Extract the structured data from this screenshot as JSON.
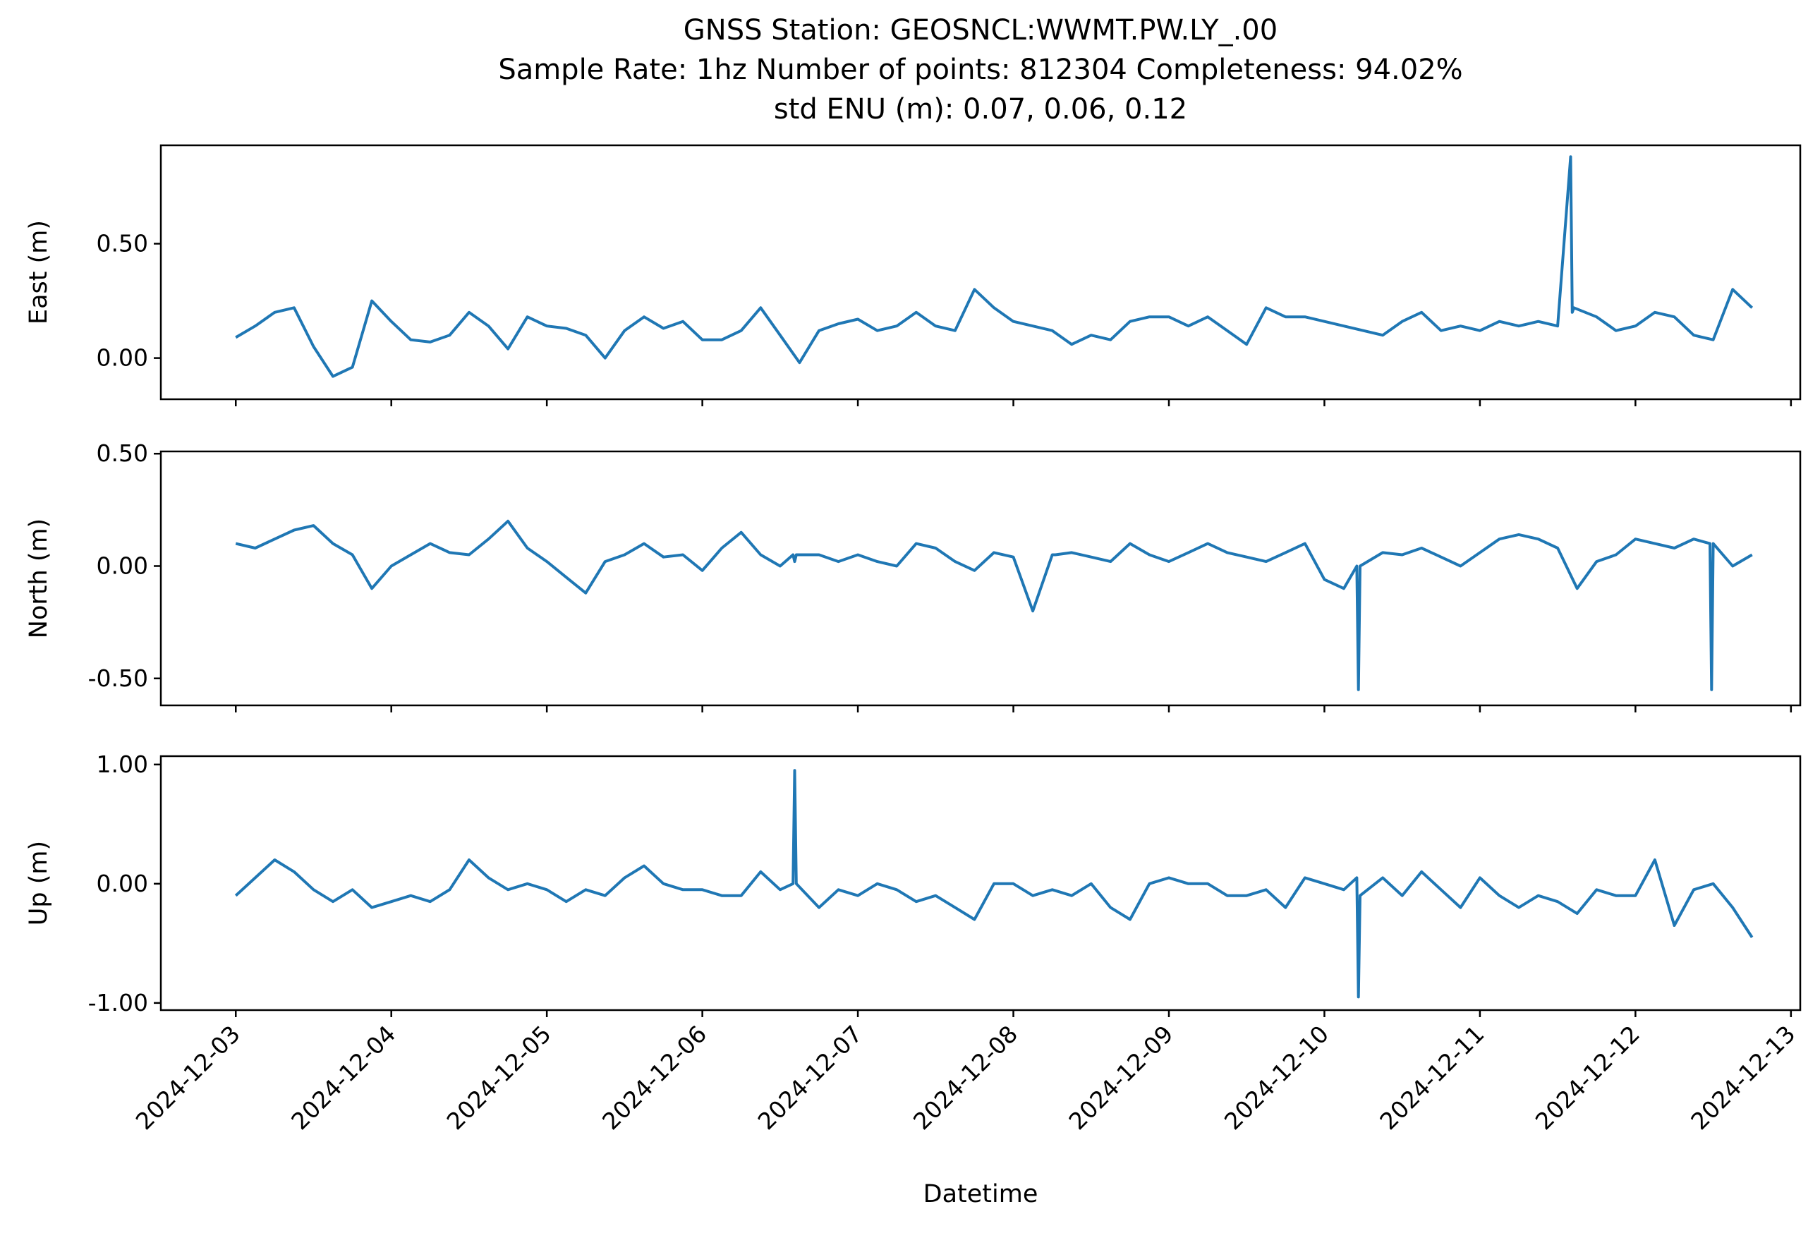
{
  "chart_data": {
    "type": "line",
    "title_lines": [
      "GNSS Station: GEOSNCL:WWMT.PW.LY_.00",
      "Sample Rate: 1hz   Number of points: 812304    Completeness:  94.02%",
      "std ENU (m):  0.07, 0.06, 0.12"
    ],
    "xlabel": "Datetime",
    "x_ticks": [
      "2024-12-03",
      "2024-12-04",
      "2024-12-05",
      "2024-12-06",
      "2024-12-07",
      "2024-12-08",
      "2024-12-09",
      "2024-12-10",
      "2024-12-11",
      "2024-12-12",
      "2024-12-13"
    ],
    "xlim": [
      "2024-12-02T12:26",
      "2024-12-13T01:26"
    ],
    "sample_rate": "1hz",
    "number_of_points": 812304,
    "completeness": "94.02%",
    "std_enu_m": [
      0.07,
      0.06,
      0.12
    ],
    "line_color": "#1f77b4",
    "grid": false,
    "panels": [
      {
        "ylabel": "East (m)",
        "ylim": [
          -0.18,
          0.93
        ],
        "y_ticks": [
          0.0,
          0.5
        ],
        "y_tick_labels": [
          "0.00",
          "0.50"
        ],
        "series": {
          "x": [
            "2024-12-03T00:00",
            "2024-12-03T03:00",
            "2024-12-03T06:00",
            "2024-12-03T09:00",
            "2024-12-03T12:00",
            "2024-12-03T15:00",
            "2024-12-03T18:00",
            "2024-12-03T21:00",
            "2024-12-04T00:00",
            "2024-12-04T03:00",
            "2024-12-04T06:00",
            "2024-12-04T09:00",
            "2024-12-04T12:00",
            "2024-12-04T15:00",
            "2024-12-04T18:00",
            "2024-12-04T21:00",
            "2024-12-05T00:00",
            "2024-12-05T03:00",
            "2024-12-05T06:00",
            "2024-12-05T09:00",
            "2024-12-05T12:00",
            "2024-12-05T15:00",
            "2024-12-05T18:00",
            "2024-12-05T21:00",
            "2024-12-06T00:00",
            "2024-12-06T03:00",
            "2024-12-06T06:00",
            "2024-12-06T09:00",
            "2024-12-06T12:00",
            "2024-12-06T15:00",
            "2024-12-06T18:00",
            "2024-12-06T21:00",
            "2024-12-07T00:00",
            "2024-12-07T03:00",
            "2024-12-07T06:00",
            "2024-12-07T09:00",
            "2024-12-07T12:00",
            "2024-12-07T15:00",
            "2024-12-07T18:00",
            "2024-12-07T21:00",
            "2024-12-08T00:00",
            "2024-12-08T03:00",
            "2024-12-08T06:00",
            "2024-12-08T09:00",
            "2024-12-08T12:00",
            "2024-12-08T15:00",
            "2024-12-08T18:00",
            "2024-12-08T21:00",
            "2024-12-09T00:00",
            "2024-12-09T03:00",
            "2024-12-09T06:00",
            "2024-12-09T09:00",
            "2024-12-09T12:00",
            "2024-12-09T15:00",
            "2024-12-09T18:00",
            "2024-12-09T21:00",
            "2024-12-10T00:00",
            "2024-12-10T03:00",
            "2024-12-10T06:00",
            "2024-12-10T09:00",
            "2024-12-10T12:00",
            "2024-12-10T15:00",
            "2024-12-10T18:00",
            "2024-12-10T21:00",
            "2024-12-11T00:00",
            "2024-12-11T03:00",
            "2024-12-11T06:00",
            "2024-12-11T09:00",
            "2024-12-11T12:00",
            "2024-12-11T14:00",
            "2024-12-11T14:15",
            "2024-12-11T14:30",
            "2024-12-11T18:00",
            "2024-12-11T21:00",
            "2024-12-12T00:00",
            "2024-12-12T03:00",
            "2024-12-12T06:00",
            "2024-12-12T09:00",
            "2024-12-12T12:00",
            "2024-12-12T15:00",
            "2024-12-12T18:00"
          ],
          "y": [
            0.09,
            0.14,
            0.2,
            0.22,
            0.05,
            -0.08,
            -0.04,
            0.25,
            0.16,
            0.08,
            0.07,
            0.1,
            0.2,
            0.14,
            0.04,
            0.18,
            0.14,
            0.13,
            0.1,
            0.0,
            0.12,
            0.18,
            0.13,
            0.16,
            0.08,
            0.08,
            0.12,
            0.22,
            0.1,
            -0.02,
            0.12,
            0.15,
            0.17,
            0.12,
            0.14,
            0.2,
            0.14,
            0.12,
            0.3,
            0.22,
            0.16,
            0.14,
            0.12,
            0.06,
            0.1,
            0.08,
            0.16,
            0.18,
            0.18,
            0.14,
            0.18,
            0.12,
            0.06,
            0.22,
            0.18,
            0.18,
            0.16,
            0.14,
            0.12,
            0.1,
            0.16,
            0.2,
            0.12,
            0.14,
            0.12,
            0.16,
            0.14,
            0.16,
            0.14,
            0.88,
            0.2,
            0.22,
            0.18,
            0.12,
            0.14,
            0.2,
            0.18,
            0.1,
            0.08,
            0.3,
            0.22
          ]
        }
      },
      {
        "ylabel": "North (m)",
        "ylim": [
          -0.62,
          0.51
        ],
        "y_ticks": [
          0.5,
          0.0,
          -0.5
        ],
        "y_tick_labels": [
          "0.50",
          "0.00",
          "-0.50"
        ],
        "series": {
          "x": [
            "2024-12-03T00:00",
            "2024-12-03T03:00",
            "2024-12-03T06:00",
            "2024-12-03T09:00",
            "2024-12-03T12:00",
            "2024-12-03T15:00",
            "2024-12-03T18:00",
            "2024-12-03T21:00",
            "2024-12-04T00:00",
            "2024-12-04T03:00",
            "2024-12-04T06:00",
            "2024-12-04T09:00",
            "2024-12-04T12:00",
            "2024-12-04T15:00",
            "2024-12-04T18:00",
            "2024-12-04T21:00",
            "2024-12-05T00:00",
            "2024-12-05T03:00",
            "2024-12-05T06:00",
            "2024-12-05T09:00",
            "2024-12-05T12:00",
            "2024-12-05T15:00",
            "2024-12-05T18:00",
            "2024-12-05T21:00",
            "2024-12-06T00:00",
            "2024-12-06T03:00",
            "2024-12-06T06:00",
            "2024-12-06T09:00",
            "2024-12-06T12:00",
            "2024-12-06T14:00",
            "2024-12-06T14:15",
            "2024-12-06T14:30",
            "2024-12-06T18:00",
            "2024-12-06T21:00",
            "2024-12-07T00:00",
            "2024-12-07T03:00",
            "2024-12-07T06:00",
            "2024-12-07T09:00",
            "2024-12-07T12:00",
            "2024-12-07T15:00",
            "2024-12-07T18:00",
            "2024-12-07T21:00",
            "2024-12-08T00:00",
            "2024-12-08T03:00",
            "2024-12-08T06:00",
            "2024-12-08T06:15",
            "2024-12-08T06:30",
            "2024-12-08T09:00",
            "2024-12-08T12:00",
            "2024-12-08T15:00",
            "2024-12-08T18:00",
            "2024-12-08T21:00",
            "2024-12-09T00:00",
            "2024-12-09T03:00",
            "2024-12-09T06:00",
            "2024-12-09T09:00",
            "2024-12-09T12:00",
            "2024-12-09T15:00",
            "2024-12-09T18:00",
            "2024-12-09T21:00",
            "2024-12-10T00:00",
            "2024-12-10T03:00",
            "2024-12-10T05:00",
            "2024-12-10T05:15",
            "2024-12-10T05:30",
            "2024-12-10T09:00",
            "2024-12-10T12:00",
            "2024-12-10T15:00",
            "2024-12-10T18:00",
            "2024-12-10T21:00",
            "2024-12-11T00:00",
            "2024-12-11T03:00",
            "2024-12-11T06:00",
            "2024-12-11T09:00",
            "2024-12-11T12:00",
            "2024-12-11T15:00",
            "2024-12-11T18:00",
            "2024-12-11T21:00",
            "2024-12-12T00:00",
            "2024-12-12T03:00",
            "2024-12-12T06:00",
            "2024-12-12T09:00",
            "2024-12-12T11:30",
            "2024-12-12T11:45",
            "2024-12-12T12:00",
            "2024-12-12T15:00",
            "2024-12-12T18:00"
          ],
          "y": [
            0.1,
            0.08,
            0.12,
            0.16,
            0.18,
            0.1,
            0.05,
            -0.1,
            0.0,
            0.05,
            0.1,
            0.06,
            0.05,
            0.12,
            0.2,
            0.08,
            0.02,
            -0.05,
            -0.12,
            0.02,
            0.05,
            0.1,
            0.04,
            0.05,
            -0.02,
            0.08,
            0.15,
            0.05,
            0.0,
            0.05,
            0.02,
            0.05,
            0.05,
            0.02,
            0.05,
            0.02,
            0.0,
            0.1,
            0.08,
            0.02,
            -0.02,
            0.06,
            0.04,
            -0.2,
            0.05,
            0.05,
            0.05,
            0.06,
            0.04,
            0.02,
            0.1,
            0.05,
            0.02,
            0.06,
            0.1,
            0.06,
            0.04,
            0.02,
            0.06,
            0.1,
            -0.06,
            -0.1,
            0.0,
            -0.55,
            0.0,
            0.06,
            0.05,
            0.08,
            0.04,
            0.0,
            0.06,
            0.12,
            0.14,
            0.12,
            0.08,
            -0.1,
            0.02,
            0.05,
            0.12,
            0.1,
            0.08,
            0.12,
            0.1,
            -0.55,
            0.1,
            0.0,
            0.05
          ]
        }
      },
      {
        "ylabel": "Up (m)",
        "ylim": [
          -1.06,
          1.07
        ],
        "y_ticks": [
          1.0,
          0.0,
          -1.0
        ],
        "y_tick_labels": [
          "1.00",
          "0.00",
          "-1.00"
        ],
        "series": {
          "x": [
            "2024-12-03T00:00",
            "2024-12-03T03:00",
            "2024-12-03T06:00",
            "2024-12-03T09:00",
            "2024-12-03T12:00",
            "2024-12-03T15:00",
            "2024-12-03T18:00",
            "2024-12-03T21:00",
            "2024-12-04T00:00",
            "2024-12-04T03:00",
            "2024-12-04T06:00",
            "2024-12-04T09:00",
            "2024-12-04T12:00",
            "2024-12-04T15:00",
            "2024-12-04T18:00",
            "2024-12-04T21:00",
            "2024-12-05T00:00",
            "2024-12-05T03:00",
            "2024-12-05T06:00",
            "2024-12-05T09:00",
            "2024-12-05T12:00",
            "2024-12-05T15:00",
            "2024-12-05T18:00",
            "2024-12-05T21:00",
            "2024-12-06T00:00",
            "2024-12-06T03:00",
            "2024-12-06T06:00",
            "2024-12-06T09:00",
            "2024-12-06T12:00",
            "2024-12-06T14:00",
            "2024-12-06T14:15",
            "2024-12-06T14:30",
            "2024-12-06T18:00",
            "2024-12-06T21:00",
            "2024-12-07T00:00",
            "2024-12-07T03:00",
            "2024-12-07T06:00",
            "2024-12-07T09:00",
            "2024-12-07T12:00",
            "2024-12-07T15:00",
            "2024-12-07T18:00",
            "2024-12-07T21:00",
            "2024-12-08T00:00",
            "2024-12-08T03:00",
            "2024-12-08T06:00",
            "2024-12-08T09:00",
            "2024-12-08T12:00",
            "2024-12-08T15:00",
            "2024-12-08T18:00",
            "2024-12-08T21:00",
            "2024-12-09T00:00",
            "2024-12-09T03:00",
            "2024-12-09T06:00",
            "2024-12-09T09:00",
            "2024-12-09T12:00",
            "2024-12-09T15:00",
            "2024-12-09T18:00",
            "2024-12-09T21:00",
            "2024-12-10T00:00",
            "2024-12-10T03:00",
            "2024-12-10T05:00",
            "2024-12-10T05:15",
            "2024-12-10T05:30",
            "2024-12-10T09:00",
            "2024-12-10T12:00",
            "2024-12-10T15:00",
            "2024-12-10T18:00",
            "2024-12-10T21:00",
            "2024-12-11T00:00",
            "2024-12-11T03:00",
            "2024-12-11T06:00",
            "2024-12-11T09:00",
            "2024-12-11T12:00",
            "2024-12-11T15:00",
            "2024-12-11T18:00",
            "2024-12-11T21:00",
            "2024-12-12T00:00",
            "2024-12-12T03:00",
            "2024-12-12T06:00",
            "2024-12-12T09:00",
            "2024-12-12T12:00",
            "2024-12-12T15:00",
            "2024-12-12T18:00"
          ],
          "y": [
            -0.1,
            0.05,
            0.2,
            0.1,
            -0.05,
            -0.15,
            -0.05,
            -0.2,
            -0.15,
            -0.1,
            -0.15,
            -0.05,
            0.2,
            0.05,
            -0.05,
            0.0,
            -0.05,
            -0.15,
            -0.05,
            -0.1,
            0.05,
            0.15,
            0.0,
            -0.05,
            -0.05,
            -0.1,
            -0.1,
            0.1,
            -0.05,
            0.0,
            0.95,
            0.0,
            -0.2,
            -0.05,
            -0.1,
            0.0,
            -0.05,
            -0.15,
            -0.1,
            -0.2,
            -0.3,
            0.0,
            0.0,
            -0.1,
            -0.05,
            -0.1,
            0.0,
            -0.2,
            -0.3,
            0.0,
            0.05,
            0.0,
            0.0,
            -0.1,
            -0.1,
            -0.05,
            -0.2,
            0.05,
            0.0,
            -0.05,
            0.05,
            -0.95,
            -0.1,
            0.05,
            -0.1,
            0.1,
            -0.05,
            -0.2,
            0.05,
            -0.1,
            -0.2,
            -0.1,
            -0.15,
            -0.25,
            -0.05,
            -0.1,
            -0.1,
            0.2,
            -0.35,
            -0.05,
            0.0,
            -0.2,
            -0.45
          ]
        }
      }
    ]
  }
}
